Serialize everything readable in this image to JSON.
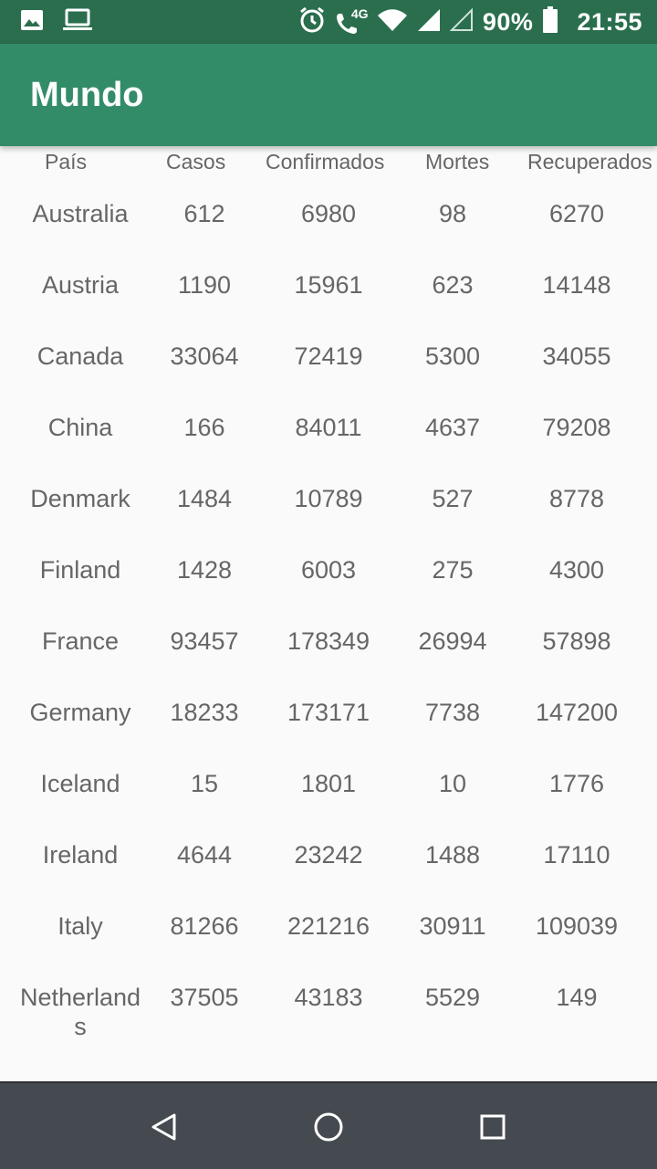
{
  "status_bar": {
    "icons_left": [
      "image-icon",
      "laptop-icon"
    ],
    "icons_right": [
      "alarm-icon",
      "wifi-calling-4g-icon",
      "wifi-icon",
      "signal-icon",
      "signal-empty-icon",
      "battery-icon"
    ],
    "net_label": "4G",
    "battery": "90%",
    "time": "21:55"
  },
  "app_bar": {
    "title": "Mundo"
  },
  "table": {
    "columns": [
      "País",
      "Casos",
      "Confirmados",
      "Mortes",
      "Recuperados"
    ],
    "rows": [
      {
        "pais": "Australia",
        "casos": "612",
        "confirmados": "6980",
        "mortes": "98",
        "recuperados": "6270"
      },
      {
        "pais": "Austria",
        "casos": "1190",
        "confirmados": "15961",
        "mortes": "623",
        "recuperados": "14148"
      },
      {
        "pais": "Canada",
        "casos": "33064",
        "confirmados": "72419",
        "mortes": "5300",
        "recuperados": "34055"
      },
      {
        "pais": "China",
        "casos": "166",
        "confirmados": "84011",
        "mortes": "4637",
        "recuperados": "79208"
      },
      {
        "pais": "Denmark",
        "casos": "1484",
        "confirmados": "10789",
        "mortes": "527",
        "recuperados": "8778"
      },
      {
        "pais": "Finland",
        "casos": "1428",
        "confirmados": "6003",
        "mortes": "275",
        "recuperados": "4300"
      },
      {
        "pais": "France",
        "casos": "93457",
        "confirmados": "178349",
        "mortes": "26994",
        "recuperados": "57898"
      },
      {
        "pais": "Germany",
        "casos": "18233",
        "confirmados": "173171",
        "mortes": "7738",
        "recuperados": "147200"
      },
      {
        "pais": "Iceland",
        "casos": "15",
        "confirmados": "1801",
        "mortes": "10",
        "recuperados": "1776"
      },
      {
        "pais": "Ireland",
        "casos": "4644",
        "confirmados": "23242",
        "mortes": "1488",
        "recuperados": "17110"
      },
      {
        "pais": "Italy",
        "casos": "81266",
        "confirmados": "221216",
        "mortes": "30911",
        "recuperados": "109039"
      },
      {
        "pais": "Netherlands",
        "casos": "37505",
        "confirmados": "43183",
        "mortes": "5529",
        "recuperados": "149"
      }
    ]
  },
  "nav_bar": {
    "buttons": [
      "back-icon",
      "home-icon",
      "recents-icon"
    ]
  },
  "colors": {
    "status_bar": "#2a6e4e",
    "app_bar": "#338c68",
    "background": "#fafafa",
    "text": "#666666",
    "nav_bar": "#454a50"
  }
}
